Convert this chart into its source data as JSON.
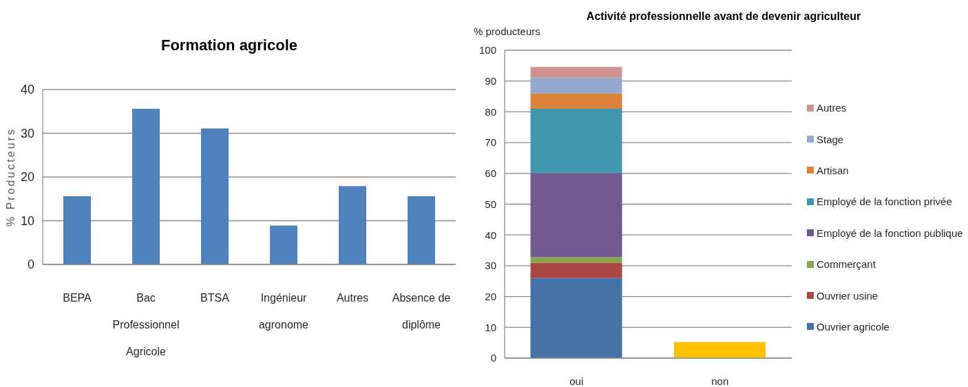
{
  "chart_data": [
    {
      "type": "bar",
      "title": "Formation agricole",
      "ylabel": "% Producteurs",
      "categories": [
        "BEPA",
        "Bac Professionnel Agricole",
        "BTSA",
        "Ingénieur agronome",
        "Autres",
        "Absence de diplôme"
      ],
      "values": [
        15.6,
        35.6,
        31.1,
        8.9,
        17.9,
        15.6
      ],
      "color": "#4f81bd",
      "ylim": [
        0,
        40
      ],
      "yticks": [
        0,
        10,
        20,
        30,
        40
      ],
      "grid": "y"
    },
    {
      "type": "bar",
      "title": "Activité professionnelle avant de devenir agriculteur",
      "ylabel": "% producteurs",
      "categories": [
        "oui",
        "non"
      ],
      "stacked": true,
      "series": [
        {
          "name": "Ouvrier agricole",
          "color": "#4572a7",
          "values": [
            26,
            null
          ]
        },
        {
          "name": "Ouvrier usine",
          "color": "#aa4643",
          "values": [
            5,
            null
          ]
        },
        {
          "name": "Commerçant",
          "color": "#89a54e",
          "values": [
            1.8,
            null
          ]
        },
        {
          "name": "Employé de la fonction publique",
          "color": "#71588f",
          "values": [
            27.3,
            null
          ]
        },
        {
          "name": "Employé de la fonction privée",
          "color": "#4198af",
          "values": [
            20.9,
            null
          ]
        },
        {
          "name": "Artisan",
          "color": "#db843d",
          "values": [
            5,
            null
          ]
        },
        {
          "name": "Stage",
          "color": "#93a9cf",
          "values": [
            5.1,
            null
          ]
        },
        {
          "name": "Autres",
          "color": "#d19392",
          "values": [
            3.5,
            null
          ]
        },
        {
          "color": "#ffc000",
          "values": [
            null,
            5.2
          ]
        }
      ],
      "ylim": [
        0,
        100
      ],
      "yticks": [
        0,
        10,
        20,
        30,
        40,
        50,
        60,
        70,
        80,
        90,
        100
      ],
      "grid": "y",
      "legend": "right"
    }
  ]
}
